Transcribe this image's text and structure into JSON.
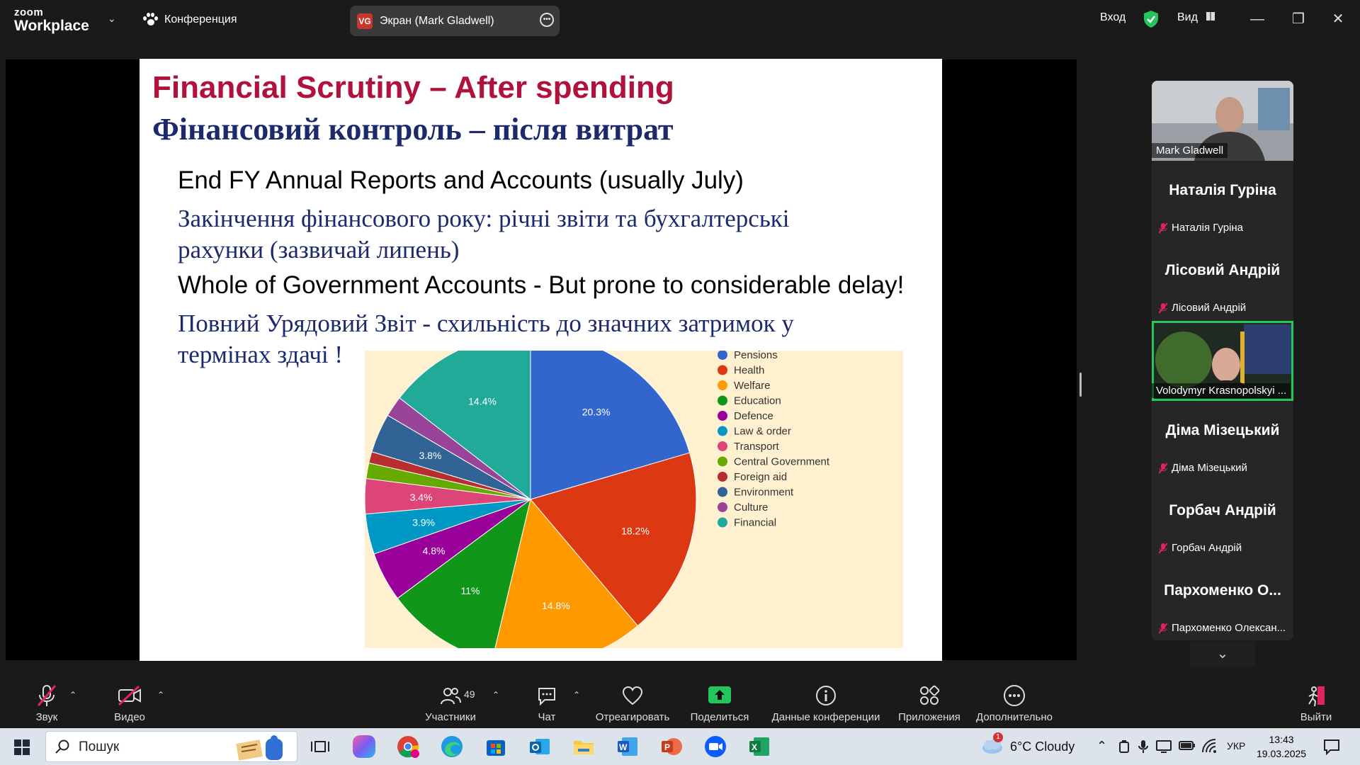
{
  "app": {
    "logo_line1": "zoom",
    "logo_line2": "Workplace",
    "conference_label": "Конференция",
    "share_badge": "VG",
    "share_label": "Экран (Mark Gladwell)",
    "signin_label": "Вход",
    "view_label": "Вид"
  },
  "slide": {
    "title_en": "Financial Scrutiny – After spending",
    "title_uk": "Фінансовий контроль – після витрат",
    "line1": "End FY Annual Reports and Accounts (usually July)",
    "line2a": "Закінчення фінансового року: річні звіти та бухгалтерські",
    "line2b": "рахунки (зазвичай липень)",
    "line3": "Whole of Government Accounts - But prone to considerable delay!",
    "line4a": "Повний Урядовий Звіт - схильність до значних затримок у",
    "line4b": "термінах здачі !"
  },
  "chart_data": {
    "type": "pie",
    "categories": [
      "Pensions",
      "Health",
      "Welfare",
      "Education",
      "Defence",
      "Law & order",
      "Transport",
      "Central Government",
      "Foreign aid",
      "Environment",
      "Culture",
      "Financial"
    ],
    "values": [
      20.3,
      18.2,
      14.8,
      11,
      4.8,
      3.9,
      3.4,
      1.5,
      1.1,
      3.8,
      2.0,
      14.4
    ],
    "data_labels": [
      "20.3%",
      "18.2%",
      "14.8%",
      "11%",
      "4.8%",
      "3.9%",
      "3.4%",
      "",
      "",
      "3.8%",
      "",
      "14.4%"
    ],
    "colors": [
      "#3366cc",
      "#dc3912",
      "#ff9900",
      "#109618",
      "#990099",
      "#0099c6",
      "#dd4477",
      "#66aa00",
      "#b82e2e",
      "#316395",
      "#994499",
      "#22aa99"
    ],
    "legend_position": "right"
  },
  "participants": [
    {
      "big": "",
      "small": "Mark Gladwell",
      "video": true,
      "muted": false
    },
    {
      "big": "Наталія Гуріна",
      "small": "Наталія Гуріна",
      "video": false,
      "muted": true
    },
    {
      "big": "Лісовий Андрій",
      "small": "Лісовий Андрій",
      "video": false,
      "muted": true
    },
    {
      "big": "",
      "small": "Volodymyr Krasnopolskyi ...",
      "video": true,
      "muted": false,
      "active": true
    },
    {
      "big": "Діма Мізецький",
      "small": "Діма Мізецький",
      "video": false,
      "muted": true
    },
    {
      "big": "Горбач Андрій",
      "small": "Горбач Андрій",
      "video": false,
      "muted": true
    },
    {
      "big": "Пархоменко О...",
      "small": "Пархоменко Олексан...",
      "video": false,
      "muted": true
    }
  ],
  "toolbar": {
    "audio": "Звук",
    "video": "Видео",
    "participants": "Участники",
    "participants_count": "49",
    "chat": "Чат",
    "react": "Отреагировать",
    "share": "Поделиться",
    "info": "Данные конференции",
    "apps": "Приложения",
    "more": "Дополнительно",
    "leave": "Выйти"
  },
  "taskbar": {
    "search_placeholder": "Пошук",
    "weather": "6°C Cloudy",
    "weather_badge": "1",
    "language": "УКР",
    "time": "13:43",
    "date": "19.03.2025"
  }
}
